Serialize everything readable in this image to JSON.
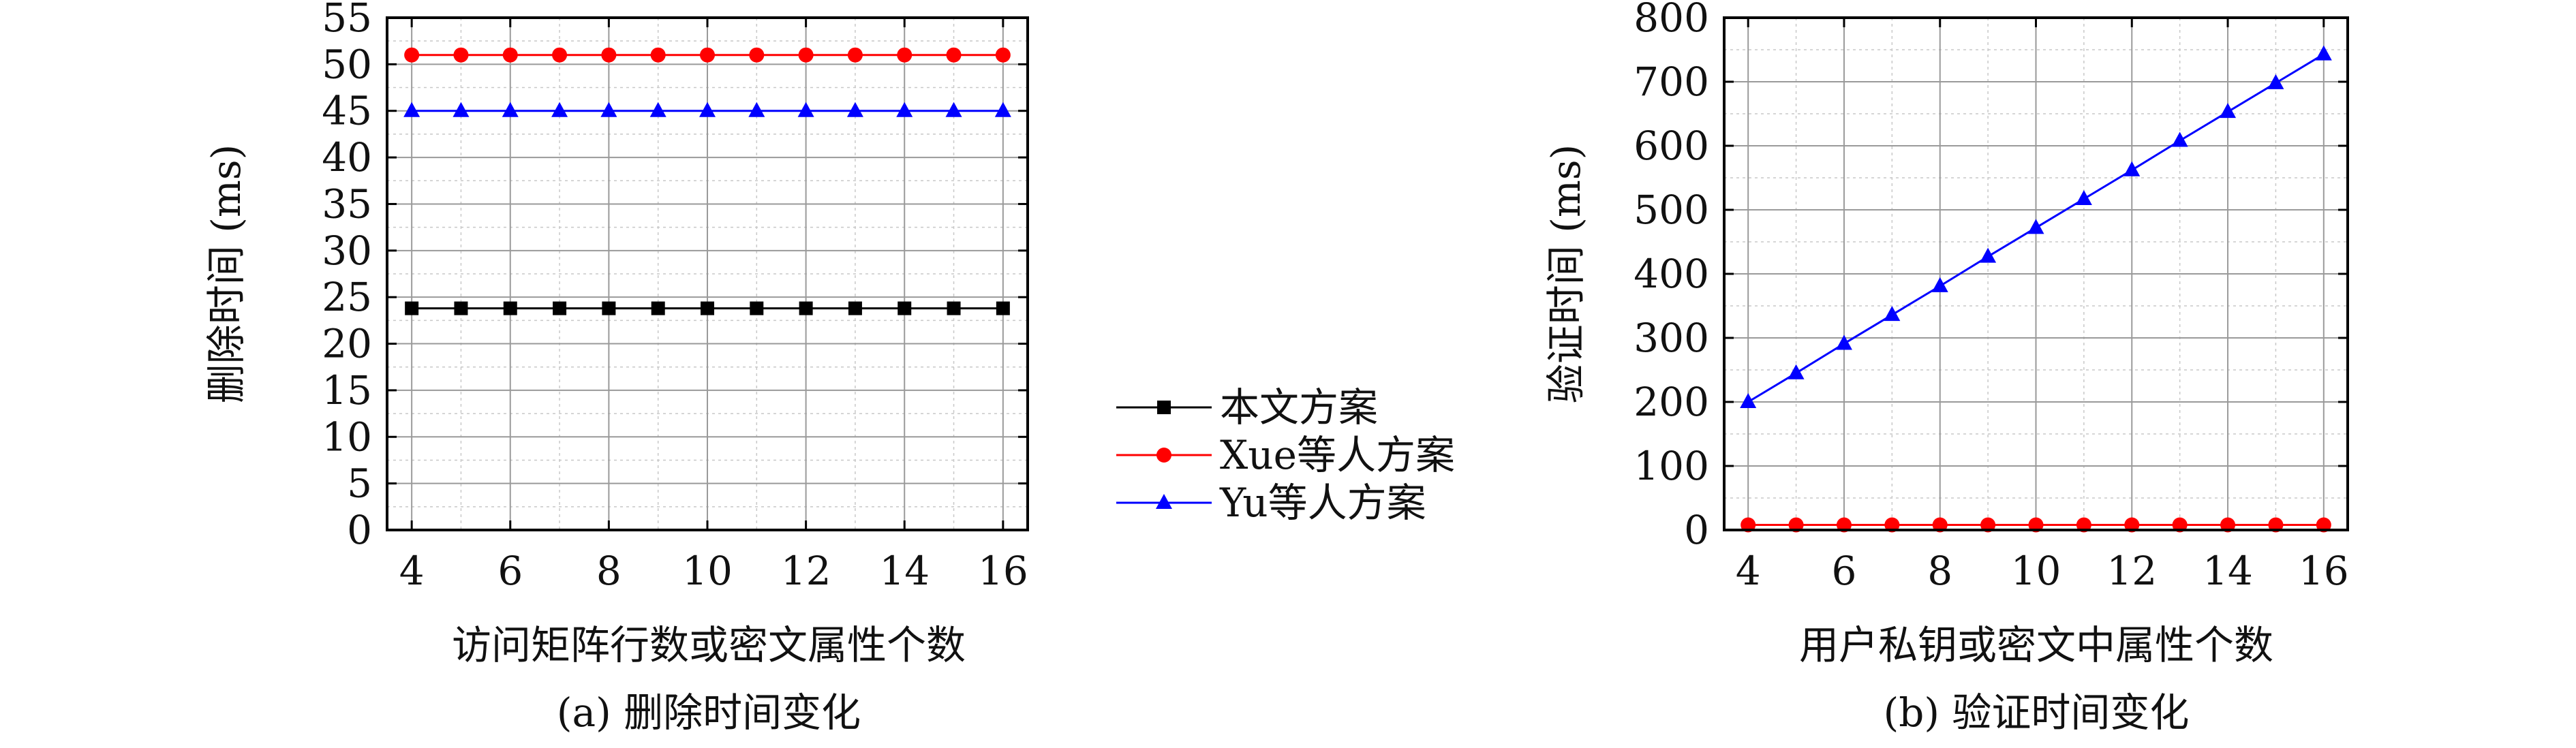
{
  "chart_data": [
    {
      "type": "line",
      "panel_label": "(a) 删除时间变化",
      "xlabel": "访问矩阵行数或密文属性个数",
      "ylabel": "删除时间 (ms)",
      "xlim": [
        3.5,
        16.5
      ],
      "ylim": [
        0,
        55
      ],
      "x_ticks": [
        4,
        6,
        8,
        10,
        12,
        14,
        16
      ],
      "y_ticks": [
        0,
        5,
        10,
        15,
        20,
        25,
        30,
        35,
        40,
        45,
        50,
        55
      ],
      "grid": true,
      "x": [
        4,
        5,
        6,
        7,
        8,
        9,
        10,
        11,
        12,
        13,
        14,
        15,
        16
      ],
      "series": [
        {
          "name": "本文方案",
          "color": "#000000",
          "marker": "square",
          "values": [
            23.8,
            23.8,
            23.8,
            23.8,
            23.8,
            23.8,
            23.8,
            23.8,
            23.8,
            23.8,
            23.8,
            23.8,
            23.8
          ]
        },
        {
          "name": "Xue等人方案",
          "color": "#ff0000",
          "marker": "circle",
          "values": [
            51.0,
            51.0,
            51.0,
            51.0,
            51.0,
            51.0,
            51.0,
            51.0,
            51.0,
            51.0,
            51.0,
            51.0,
            51.0
          ]
        },
        {
          "name": "Yu等人方案",
          "color": "#0000ff",
          "marker": "triangle",
          "values": [
            45.0,
            45.0,
            45.0,
            45.0,
            45.0,
            45.0,
            45.0,
            45.0,
            45.0,
            45.0,
            45.0,
            45.0,
            45.0
          ]
        }
      ]
    },
    {
      "type": "line",
      "panel_label": "(b) 验证时间变化",
      "xlabel": "用户私钥或密文中属性个数",
      "ylabel": "验证时间 (ms)",
      "xlim": [
        3.5,
        16.5
      ],
      "ylim": [
        0,
        800
      ],
      "x_ticks": [
        4,
        6,
        8,
        10,
        12,
        14,
        16
      ],
      "y_ticks": [
        0,
        100,
        200,
        300,
        400,
        500,
        600,
        700,
        800
      ],
      "grid": true,
      "x": [
        4,
        5,
        6,
        7,
        8,
        9,
        10,
        11,
        12,
        13,
        14,
        15,
        16
      ],
      "series": [
        {
          "name": "Xue等人方案",
          "color": "#ff0000",
          "marker": "circle",
          "values": [
            8,
            8,
            8,
            8,
            8,
            8,
            8,
            8,
            8,
            8,
            8,
            8,
            8
          ]
        },
        {
          "name": "Yu等人方案",
          "color": "#0000ff",
          "marker": "triangle",
          "values": [
            200,
            245,
            291,
            336,
            381,
            427,
            472,
            517,
            562,
            608,
            653,
            698,
            743
          ]
        }
      ]
    }
  ],
  "legend": {
    "placement": "center-between-panels",
    "entries": [
      {
        "label": "本文方案",
        "color": "#000000",
        "marker": "square"
      },
      {
        "label": "Xue等人方案",
        "color": "#ff0000",
        "marker": "circle"
      },
      {
        "label": "Yu等人方案",
        "color": "#0000ff",
        "marker": "triangle"
      }
    ]
  }
}
